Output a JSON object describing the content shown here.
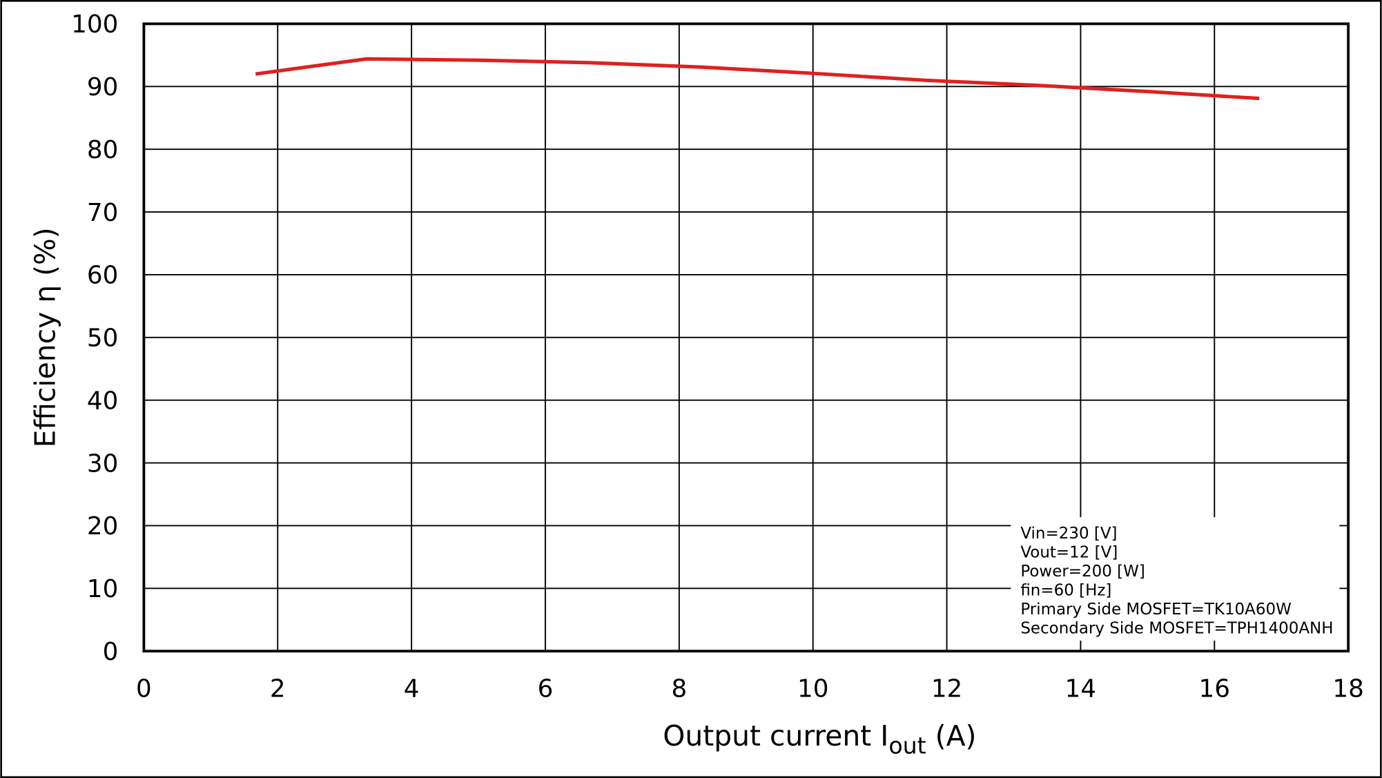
{
  "chart_data": {
    "type": "line",
    "xlabel": {
      "text": "Output current  I",
      "sub": "out",
      "tail": " (A)"
    },
    "ylabel": "Efficiency  η (%)",
    "x": [
      1.67,
      3.33,
      5,
      6.67,
      8.33,
      10,
      11.67,
      13.33,
      15,
      16.67
    ],
    "series": [
      {
        "color": "#e02020",
        "values": [
          92.0,
          94.4,
          94.2,
          93.8,
          93.1,
          92.1,
          91.0,
          90.2,
          89.2,
          88.1
        ]
      }
    ],
    "xlim": [
      0,
      18
    ],
    "xticks": [
      0,
      2,
      4,
      6,
      8,
      10,
      12,
      14,
      16,
      18
    ],
    "ylim": [
      0,
      100
    ],
    "yticks": [
      0,
      10,
      20,
      30,
      40,
      50,
      60,
      70,
      80,
      90,
      100
    ],
    "grid": true,
    "annotation": [
      "Vin=230 [V]",
      "Vout=12 [V]",
      "Power=200 [W]",
      "fin=60 [Hz]",
      "Primary Side MOSFET=TK10A60W",
      "Secondary Side MOSFET=TPH1400ANH"
    ]
  }
}
